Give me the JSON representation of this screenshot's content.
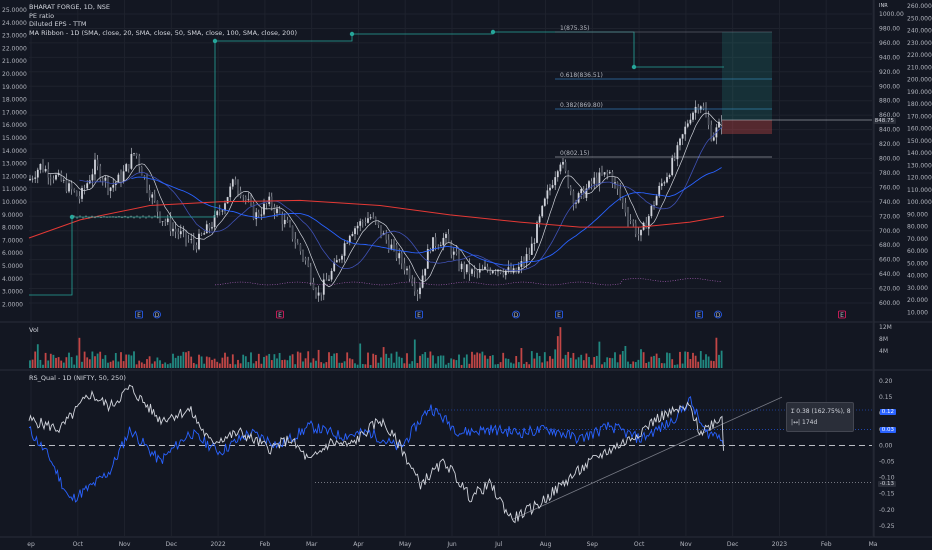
{
  "header": {
    "symbol": "BHARAT FORGE, 1D, NSE",
    "indicator1": "PE ratio",
    "indicator2": "Diluted EPS - TTM",
    "indicator3": "MA Ribbon - 1D (SMA, close, 20, SMA, close, 50, SMA, close, 100, SMA, close, 200)"
  },
  "currency": "INR",
  "vol_label": "Vol",
  "rs_label": "RS_Qual - 1D (NIFTY, 50, 250)",
  "tooltip": {
    "line1": "0.38 (162.75%), 8",
    "line2": "174d"
  },
  "price_label": "848.75",
  "rs_label_1": "0.12",
  "rs_label_2": "0.03",
  "rs_label_3": "-0.13",
  "fib_labels": [
    "1(875.35)",
    "0.618(836.51)",
    "0.382(869.80)",
    "0(802.15)"
  ],
  "colors": {
    "bg": "#131722",
    "up": "#26a69a",
    "down": "#ef5350",
    "white": "#d1d4dc",
    "blue": "#2962ff",
    "ma200": "#e53935",
    "grid": "#1e222d"
  },
  "chart_data": [
    {
      "type": "candlestick",
      "name": "price",
      "right_axis_ticks": [
        "1000.00",
        "980.00",
        "960.00",
        "940.00",
        "920.00",
        "900.00",
        "880.00",
        "860.00",
        "840.00",
        "820.00",
        "800.00",
        "780.00",
        "760.00",
        "740.00",
        "720.00",
        "700.00",
        "680.00",
        "660.00",
        "640.00",
        "620.00",
        "600.00"
      ],
      "pe_axis_ticks": [
        "260.000",
        "250.000",
        "240.000",
        "230.000",
        "220.000",
        "210.000",
        "200.000",
        "190.000",
        "180.000",
        "170.000",
        "160.000",
        "150.000",
        "140.000",
        "130.000",
        "120.000",
        "110.000",
        "100.000",
        "90.000",
        "80.000",
        "70.000",
        "60.000",
        "50.000",
        "40.000",
        "30.000",
        "20.000",
        "10.000"
      ],
      "left_axis_ticks": [
        "25.0000",
        "24.0000",
        "23.0000",
        "22.0000",
        "21.0000",
        "20.0000",
        "19.0000",
        "18.0000",
        "17.0000",
        "16.0000",
        "15.0000",
        "14.0000",
        "13.0000",
        "12.0000",
        "11.0000",
        "10.0000",
        "9.0000",
        "8.0000",
        "7.0000",
        "6.0000",
        "5.0000",
        "4.0000",
        "3.0000",
        "2.0000"
      ],
      "ylim": [
        600,
        1000
      ]
    },
    {
      "type": "bar",
      "name": "volume",
      "axis_ticks": [
        "12M",
        "8M",
        "4M"
      ]
    },
    {
      "type": "line",
      "name": "RS_Qual",
      "axis_ticks": [
        "0.20",
        "0.15",
        "0.10",
        "0.05",
        "0.00",
        "-0.05",
        "-0.10",
        "-0.15",
        "-0.20",
        "-0.25"
      ],
      "ylim": [
        -0.27,
        0.22
      ]
    }
  ],
  "x_axis_labels": [
    "ep",
    "Oct",
    "Nov",
    "Dec",
    "2022",
    "Feb",
    "Mar",
    "Apr",
    "May",
    "Jun",
    "Jul",
    "Aug",
    "Sep",
    "Oct",
    "Nov",
    "Dec",
    "2023",
    "Feb",
    "Ma"
  ],
  "event_markers": [
    "E",
    "D",
    "E",
    "E",
    "D",
    "E",
    "E",
    "D",
    "E"
  ]
}
